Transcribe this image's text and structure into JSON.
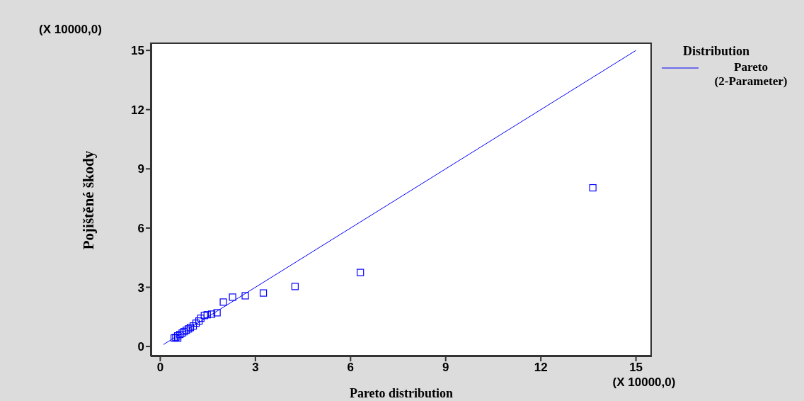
{
  "chart_data": {
    "type": "scatter",
    "xlabel": "Pareto distribution",
    "ylabel": "Pojištěné škody",
    "legend_title": "Distribution",
    "annotations": [
      "(X 10000,0)",
      "(X 10000,0)"
    ],
    "xlim": [
      -0.3,
      15.5
    ],
    "ylim": [
      -0.5,
      15.4
    ],
    "xticks": [
      0,
      3,
      6,
      9,
      12,
      15
    ],
    "yticks": [
      0,
      3,
      6,
      9,
      12,
      15
    ],
    "grid": false,
    "legend": "top right",
    "series": [
      {
        "color": "#0000ff",
        "marker": "square",
        "x": [
          0.44,
          0.49,
          0.55,
          0.55,
          0.62,
          0.69,
          0.75,
          0.82,
          0.89,
          0.95,
          1.04,
          1.13,
          1.22,
          1.28,
          1.39,
          1.48,
          1.62,
          1.79,
          1.99,
          2.28,
          2.68,
          3.25,
          4.25,
          6.31,
          13.64
        ],
        "values": [
          0.43,
          0.46,
          0.43,
          0.54,
          0.61,
          0.68,
          0.75,
          0.82,
          0.89,
          0.96,
          1.04,
          1.18,
          1.29,
          1.43,
          1.57,
          1.61,
          1.64,
          1.71,
          2.25,
          2.5,
          2.57,
          2.71,
          3.04,
          3.75,
          8.04
        ]
      },
      {
        "type": "line",
        "name": "Pareto (2-Parameter)",
        "color": "#0000ff",
        "marker": "none",
        "line_style": "solid",
        "x": [
          0.1,
          15
        ],
        "values": [
          0.1,
          15
        ]
      }
    ]
  }
}
